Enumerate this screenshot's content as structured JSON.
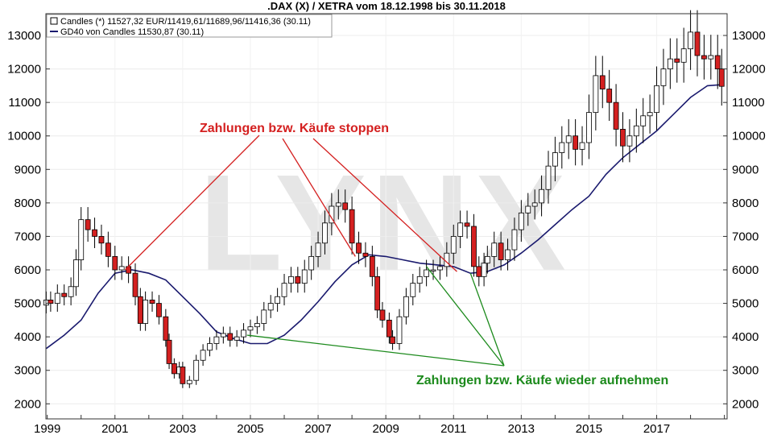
{
  "chart_data": {
    "type": "line",
    "title": ".DAX (X) / XETRA vom 18.12.1998 bis 30.11.2018",
    "legend": [
      {
        "label": "Candles (*) 11527,32 EUR/11419,61/11689,96/11416,36 (30.11)",
        "marker": "box"
      },
      {
        "label": "GD40 von Candles 11530,87 (30.11)",
        "marker": "line"
      }
    ],
    "legend_placement": "top-left",
    "watermark": "LYNX",
    "x_ticks": [
      "1999",
      "2001",
      "2003",
      "2005",
      "2007",
      "2009",
      "2011",
      "2013",
      "2015",
      "2017"
    ],
    "y_ticks": [
      2000,
      3000,
      4000,
      5000,
      6000,
      7000,
      8000,
      9000,
      10000,
      11000,
      12000,
      13000
    ],
    "xlim": [
      1998.96,
      2019.08
    ],
    "ylim": [
      1550,
      13650
    ],
    "series": [
      {
        "name": "Candles",
        "kind": "candlestick",
        "x": [
          1998.97,
          1999.1,
          1999.3,
          1999.5,
          1999.7,
          1999.85,
          2000.0,
          2000.2,
          2000.4,
          2000.6,
          2000.8,
          2001.0,
          2001.2,
          2001.4,
          2001.6,
          2001.75,
          2001.9,
          2002.1,
          2002.3,
          2002.5,
          2002.6,
          2002.75,
          2002.9,
          2003.0,
          2003.2,
          2003.4,
          2003.6,
          2003.8,
          2004.0,
          2004.2,
          2004.4,
          2004.6,
          2004.8,
          2005.0,
          2005.2,
          2005.4,
          2005.6,
          2005.8,
          2006.0,
          2006.2,
          2006.4,
          2006.6,
          2006.8,
          2007.0,
          2007.2,
          2007.4,
          2007.6,
          2007.8,
          2008.0,
          2008.2,
          2008.4,
          2008.6,
          2008.75,
          2008.9,
          2009.1,
          2009.2,
          2009.4,
          2009.6,
          2009.8,
          2010.0,
          2010.2,
          2010.4,
          2010.6,
          2010.8,
          2011.0,
          2011.2,
          2011.4,
          2011.6,
          2011.75,
          2011.9,
          2012.0,
          2012.2,
          2012.4,
          2012.6,
          2012.8,
          2013.0,
          2013.2,
          2013.4,
          2013.6,
          2013.8,
          2014.0,
          2014.2,
          2014.4,
          2014.6,
          2014.8,
          2015.0,
          2015.2,
          2015.4,
          2015.6,
          2015.8,
          2016.0,
          2016.2,
          2016.4,
          2016.6,
          2016.8,
          2017.0,
          2017.2,
          2017.4,
          2017.6,
          2017.8,
          2018.0,
          2018.2,
          2018.4,
          2018.6,
          2018.8,
          2018.92
        ],
        "close": [
          5100,
          5000,
          5300,
          5200,
          5500,
          6300,
          7500,
          7200,
          7000,
          6800,
          6400,
          6000,
          6100,
          5900,
          5200,
          4400,
          5100,
          5000,
          4600,
          3900,
          3200,
          2900,
          3100,
          2600,
          2700,
          3300,
          3600,
          3800,
          4000,
          4100,
          3900,
          4000,
          4200,
          4300,
          4400,
          4800,
          5000,
          5200,
          5600,
          5800,
          5600,
          6000,
          6400,
          6800,
          7400,
          7900,
          8000,
          7800,
          6800,
          6500,
          6400,
          5800,
          4800,
          4500,
          4000,
          3800,
          4600,
          5200,
          5600,
          5800,
          6000,
          6000,
          6100,
          6500,
          7000,
          7400,
          7300,
          6100,
          5800,
          6200,
          6400,
          6800,
          6300,
          6600,
          7200,
          7700,
          7900,
          8000,
          8400,
          9100,
          9500,
          9800,
          10000,
          9600,
          9800,
          10700,
          11800,
          11400,
          11000,
          10200,
          9700,
          10000,
          10300,
          10600,
          10700,
          11500,
          12000,
          12300,
          12200,
          12600,
          13100,
          12400,
          12300,
          12400,
          12000,
          11480
        ],
        "up_color": "#ffffff",
        "down_color": "#d42020"
      },
      {
        "name": "GD40",
        "kind": "line",
        "color": "#1a1a6e",
        "x": [
          1998.97,
          1999.5,
          2000.0,
          2000.5,
          2001.0,
          2001.5,
          2002.0,
          2002.5,
          2003.0,
          2003.5,
          2004.0,
          2004.5,
          2005.0,
          2005.5,
          2006.0,
          2006.5,
          2007.0,
          2007.5,
          2008.0,
          2008.5,
          2009.0,
          2009.5,
          2010.0,
          2010.5,
          2011.0,
          2011.5,
          2012.0,
          2012.5,
          2013.0,
          2013.5,
          2014.0,
          2014.5,
          2015.0,
          2015.5,
          2016.0,
          2016.5,
          2017.0,
          2017.5,
          2018.0,
          2018.5,
          2018.92
        ],
        "y": [
          3650,
          4050,
          4500,
          5300,
          5900,
          6000,
          5900,
          5700,
          5200,
          4700,
          4150,
          3950,
          3800,
          3800,
          4050,
          4500,
          5050,
          5650,
          6150,
          6450,
          6400,
          6300,
          6200,
          6150,
          6100,
          5900,
          5950,
          6150,
          6500,
          6900,
          7350,
          7800,
          8200,
          8850,
          9350,
          9750,
          10150,
          10650,
          11150,
          11500,
          11530
        ]
      }
    ],
    "annotations": {
      "stop": {
        "text": "Zahlungen bzw. Käufe stoppen",
        "color": "#d42020",
        "targets": [
          {
            "x": 2001.3,
            "y": 6000
          },
          {
            "x": 2008.1,
            "y": 6400
          },
          {
            "x": 2011.1,
            "y": 5950
          }
        ]
      },
      "resume": {
        "text": "Zahlungen bzw. Käufe wieder aufnehmen",
        "color": "#1c8a1c",
        "targets": [
          {
            "x": 2004.9,
            "y": 4050
          },
          {
            "x": 2010.2,
            "y": 6100
          },
          {
            "x": 2011.5,
            "y": 5900
          }
        ]
      }
    }
  }
}
